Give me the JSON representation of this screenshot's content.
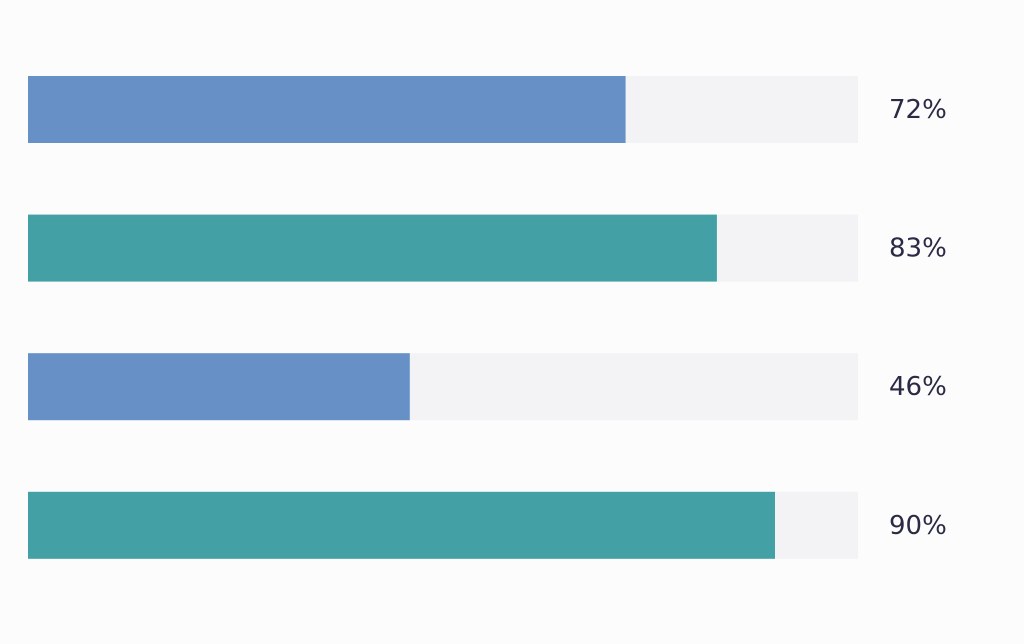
{
  "chart_data": {
    "type": "bar",
    "orientation": "horizontal",
    "values": [
      72,
      83,
      46,
      90
    ],
    "value_labels": [
      "72%",
      "83%",
      "46%",
      "90%"
    ],
    "colors": [
      "#6690c6",
      "#43a0a5",
      "#6690c6",
      "#43a0a5"
    ],
    "track_color": "#f3f3f6",
    "xlim": [
      0,
      100
    ]
  }
}
